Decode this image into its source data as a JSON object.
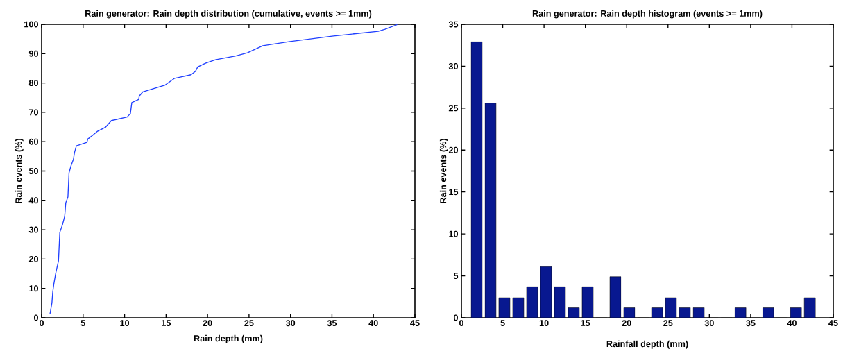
{
  "chart_data": [
    {
      "type": "line",
      "title": "Rain generator: Rain depth distribution (cumulative, events >= 1mm)",
      "xlabel": "Rain depth (mm)",
      "ylabel": "Rain events (%)",
      "color": "#1f3fff",
      "x": [
        1.01,
        1.24,
        1.34,
        1.47,
        1.7,
        2.03,
        2.19,
        2.52,
        2.78,
        2.91,
        3.17,
        3.3,
        3.53,
        3.83,
        3.96,
        4.19,
        5.46,
        5.56,
        6.2,
        6.7,
        7.69,
        8.41,
        10.31,
        10.7,
        10.87,
        11.69,
        11.78,
        12.21,
        14.89,
        15.48,
        16.03,
        18.0,
        18.55,
        18.82,
        19.8,
        20.95,
        23.4,
        24.8,
        26.67,
        29.94,
        35.18,
        40.57,
        41.4,
        42.87
      ],
      "values": [
        1.4,
        5.1,
        8.8,
        11.5,
        15.2,
        19.4,
        29.1,
        31.8,
        34.6,
        39.2,
        41.2,
        49.4,
        51.7,
        54.0,
        56.3,
        58.6,
        59.8,
        60.9,
        62.3,
        63.5,
        64.9,
        67.2,
        68.4,
        69.6,
        73.3,
        74.4,
        75.6,
        77.0,
        79.3,
        80.5,
        81.6,
        82.8,
        84.0,
        85.5,
        86.8,
        87.9,
        89.2,
        90.3,
        92.7,
        94.1,
        96.0,
        97.6,
        98.3,
        99.9
      ],
      "xlim": [
        0,
        45
      ],
      "ylim": [
        0,
        100
      ],
      "xticks": [
        0,
        5,
        10,
        15,
        20,
        25,
        30,
        35,
        40,
        45
      ],
      "yticks": [
        0,
        10,
        20,
        30,
        40,
        50,
        60,
        70,
        80,
        90,
        100
      ]
    },
    {
      "type": "histogram",
      "title": "Rain generator: Rain depth histogram (events >= 1mm)",
      "xlabel": "Rainfall depth (mm)",
      "ylabel": "Rain events (%)",
      "color": "#081890",
      "bins": [
        1,
        2.68,
        4.36,
        6.04,
        7.72,
        9.4,
        11.08,
        12.76,
        14.44,
        16.12,
        17.8,
        19.48,
        21.16,
        22.84,
        24.52,
        26.2,
        27.88,
        29.56,
        31.24,
        32.92,
        34.6,
        36.28,
        37.96,
        39.64,
        41.32,
        43
      ],
      "values": [
        32.9,
        25.6,
        2.4,
        2.4,
        3.7,
        6.1,
        3.7,
        1.2,
        3.7,
        0,
        4.9,
        1.2,
        0,
        1.2,
        2.4,
        1.2,
        1.2,
        0,
        0,
        1.2,
        0,
        1.2,
        0,
        1.2,
        2.4
      ],
      "xlim": [
        0,
        45
      ],
      "ylim": [
        0,
        35
      ],
      "xticks": [
        0,
        5,
        10,
        15,
        20,
        25,
        30,
        35,
        40,
        45
      ],
      "yticks": [
        0,
        5,
        10,
        15,
        20,
        25,
        30,
        35
      ]
    }
  ]
}
